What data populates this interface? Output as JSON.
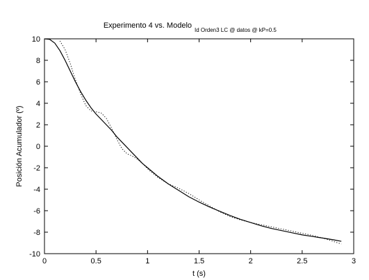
{
  "chart_data": {
    "type": "line",
    "title": "Experimento 4 vs. Modelo",
    "title_subscript": "Id Orden3 LC @ datos @ kP=0.5",
    "xlabel": "t (s)",
    "ylabel": "Posición Acumulador (º)",
    "xlim": [
      0,
      3
    ],
    "ylim": [
      -10,
      10
    ],
    "xticks": [
      0,
      0.5,
      1,
      1.5,
      2,
      2.5,
      3
    ],
    "xtick_labels": [
      "0",
      "0.5",
      "1",
      "1.5",
      "2",
      "2.5",
      "3"
    ],
    "yticks": [
      10,
      8,
      6,
      4,
      2,
      0,
      -2,
      -4,
      -6,
      -8,
      -10
    ],
    "ytick_labels": [
      "10",
      "8",
      "6",
      "4",
      "2",
      "0",
      "-2",
      "-4",
      "-6",
      "-8",
      "-10"
    ],
    "grid": false,
    "series": [
      {
        "style": "solid",
        "color": "#000000",
        "x": [
          0,
          0.05,
          0.1,
          0.15,
          0.2,
          0.25,
          0.3,
          0.35,
          0.4,
          0.45,
          0.5,
          0.55,
          0.6,
          0.65,
          0.7,
          0.75,
          0.8,
          0.85,
          0.9,
          0.95,
          1.0,
          1.1,
          1.2,
          1.3,
          1.4,
          1.5,
          1.6,
          1.7,
          1.8,
          1.9,
          2.0,
          2.1,
          2.2,
          2.3,
          2.4,
          2.5,
          2.6,
          2.7,
          2.8,
          2.88
        ],
        "y": [
          10.0,
          9.95,
          9.6,
          8.9,
          8.0,
          7.0,
          6.0,
          5.1,
          4.3,
          3.6,
          3.0,
          2.5,
          2.0,
          1.5,
          0.9,
          0.4,
          -0.1,
          -0.6,
          -1.1,
          -1.6,
          -2.0,
          -2.8,
          -3.5,
          -4.1,
          -4.7,
          -5.2,
          -5.65,
          -6.05,
          -6.45,
          -6.8,
          -7.1,
          -7.4,
          -7.65,
          -7.85,
          -8.05,
          -8.25,
          -8.4,
          -8.55,
          -8.7,
          -8.85
        ]
      },
      {
        "style": "dotted",
        "color": "#000000",
        "x": [
          0.15,
          0.2,
          0.25,
          0.3,
          0.35,
          0.4,
          0.45,
          0.5,
          0.55,
          0.6,
          0.65,
          0.7,
          0.75,
          0.8,
          0.85,
          0.9,
          0.95,
          1.0,
          1.1,
          1.2,
          1.3,
          1.4,
          1.5,
          1.6,
          1.7,
          1.8,
          1.9,
          2.0,
          2.1,
          2.2,
          2.3,
          2.4,
          2.5,
          2.6,
          2.7,
          2.8,
          2.88
        ],
        "y": [
          9.8,
          9.0,
          7.7,
          6.2,
          4.9,
          3.8,
          3.3,
          3.2,
          3.1,
          2.6,
          1.7,
          0.7,
          -0.2,
          -0.7,
          -0.9,
          -1.2,
          -1.6,
          -2.1,
          -2.9,
          -3.5,
          -3.9,
          -4.4,
          -5.0,
          -5.55,
          -6.1,
          -6.55,
          -6.85,
          -7.1,
          -7.3,
          -7.5,
          -7.7,
          -7.9,
          -8.1,
          -8.3,
          -8.55,
          -8.85,
          -9.1
        ]
      }
    ]
  }
}
